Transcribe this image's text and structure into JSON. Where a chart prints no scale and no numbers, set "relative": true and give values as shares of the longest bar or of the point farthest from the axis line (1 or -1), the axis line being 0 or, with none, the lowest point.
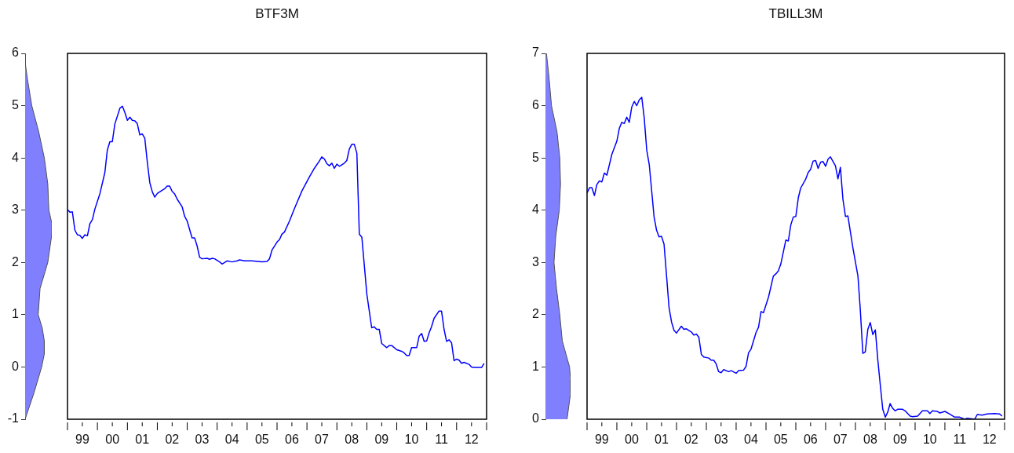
{
  "chart_data": [
    {
      "type": "area",
      "orientation": "horizontal",
      "relative": true,
      "color": "#8080ff",
      "tick_labels": "y",
      "ylim": [
        -1,
        6
      ],
      "yticks": [
        -1,
        0,
        1,
        2,
        3,
        4,
        5,
        6
      ],
      "x": [
        6,
        5.8,
        5.5,
        5,
        4.5,
        4,
        3.5,
        3,
        2.75,
        2.5,
        2,
        1.5,
        1,
        0.75,
        0.5,
        0.25,
        0,
        -0.5,
        -1
      ],
      "values": [
        0,
        0.01,
        0.09,
        0.25,
        0.51,
        0.72,
        0.85,
        0.89,
        1,
        0.99,
        0.85,
        0.56,
        0.49,
        0.64,
        0.72,
        0.72,
        0.62,
        0.33,
        0
      ]
    },
    {
      "type": "line",
      "title": "BTF3M",
      "color": "#0000ff",
      "marker": "none",
      "tick_labels": "x",
      "ylim": [
        -1,
        6
      ],
      "xlim": [
        "1999-01",
        "2013-01"
      ],
      "xticks": [
        {
          "value": "1999-01",
          "label": null
        },
        {
          "value": "1999-07",
          "label": "99"
        },
        {
          "value": "2000-01",
          "label": null
        },
        {
          "value": "2000-07",
          "label": "00"
        },
        {
          "value": "2001-01",
          "label": null
        },
        {
          "value": "2001-07",
          "label": "01"
        },
        {
          "value": "2002-01",
          "label": null
        },
        {
          "value": "2002-07",
          "label": "02"
        },
        {
          "value": "2003-01",
          "label": null
        },
        {
          "value": "2003-07",
          "label": "03"
        },
        {
          "value": "2004-01",
          "label": null
        },
        {
          "value": "2004-07",
          "label": "04"
        },
        {
          "value": "2005-01",
          "label": null
        },
        {
          "value": "2005-07",
          "label": "05"
        },
        {
          "value": "2006-01",
          "label": null
        },
        {
          "value": "2006-07",
          "label": "06"
        },
        {
          "value": "2007-01",
          "label": null
        },
        {
          "value": "2007-07",
          "label": "07"
        },
        {
          "value": "2008-01",
          "label": null
        },
        {
          "value": "2008-07",
          "label": "08"
        },
        {
          "value": "2009-01",
          "label": null
        },
        {
          "value": "2009-07",
          "label": "09"
        },
        {
          "value": "2010-01",
          "label": null
        },
        {
          "value": "2010-07",
          "label": "10"
        },
        {
          "value": "2011-01",
          "label": null
        },
        {
          "value": "2011-07",
          "label": "11"
        },
        {
          "value": "2012-01",
          "label": null
        },
        {
          "value": "2012-07",
          "label": "12"
        },
        {
          "value": "2013-01",
          "label": null
        }
      ],
      "x": [
        "1999-01",
        "1999-02",
        "1999-03",
        "1999-04",
        "1999-05",
        "1999-06",
        "1999-07",
        "1999-08",
        "1999-09",
        "1999-10",
        "1999-11",
        "1999-12",
        "2000-02",
        "2000-04",
        "2000-05",
        "2000-06",
        "2000-07",
        "2000-08",
        "2000-10",
        "2000-11",
        "2000-12",
        "2001-01",
        "2001-02",
        "2001-03",
        "2001-04",
        "2001-05",
        "2001-06",
        "2001-07",
        "2001-08",
        "2001-09",
        "2001-10",
        "2001-11",
        "2001-12",
        "2002-01",
        "2002-03",
        "2002-04",
        "2002-05",
        "2002-06",
        "2002-07",
        "2002-08",
        "2002-09",
        "2002-11",
        "2002-12",
        "2003-01",
        "2003-02",
        "2003-03",
        "2003-04",
        "2003-05",
        "2003-06",
        "2003-07",
        "2003-09",
        "2003-10",
        "2003-11",
        "2003-12",
        "2004-02",
        "2004-03",
        "2004-05",
        "2004-07",
        "2004-09",
        "2004-10",
        "2004-12",
        "2005-03",
        "2005-07",
        "2005-09",
        "2005-10",
        "2005-11",
        "2006-01",
        "2006-02",
        "2006-03",
        "2006-04",
        "2006-06",
        "2006-08",
        "2006-11",
        "2007-02",
        "2007-04",
        "2007-06",
        "2007-07",
        "2007-08",
        "2007-09",
        "2007-10",
        "2007-11",
        "2007-12",
        "2008-01",
        "2008-02",
        "2008-04",
        "2008-05",
        "2008-06",
        "2008-07",
        "2008-08",
        "2008-09",
        "2008-10",
        "2008-11",
        "2009-01",
        "2009-03",
        "2009-04",
        "2009-05",
        "2009-06",
        "2009-07",
        "2009-09",
        "2009-10",
        "2009-11",
        "2010-01",
        "2010-03",
        "2010-04",
        "2010-05",
        "2010-06",
        "2010-07",
        "2010-09",
        "2010-10",
        "2010-11",
        "2010-12",
        "2011-01",
        "2011-02",
        "2011-03",
        "2011-04",
        "2011-06",
        "2011-07",
        "2011-08",
        "2011-09",
        "2011-10",
        "2011-11",
        "2011-12",
        "2012-01",
        "2012-02",
        "2012-03",
        "2012-04",
        "2012-06",
        "2012-07",
        "2012-08",
        "2012-11",
        "2012-12"
      ],
      "values": [
        3.01,
        2.96,
        2.97,
        2.62,
        2.53,
        2.52,
        2.46,
        2.53,
        2.51,
        2.74,
        2.82,
        3.02,
        3.32,
        3.72,
        4.15,
        4.31,
        4.31,
        4.65,
        4.95,
        4.99,
        4.87,
        4.72,
        4.78,
        4.72,
        4.71,
        4.66,
        4.44,
        4.46,
        4.38,
        3.92,
        3.53,
        3.35,
        3.25,
        3.32,
        3.38,
        3.41,
        3.46,
        3.46,
        3.36,
        3.31,
        3.21,
        3.06,
        2.88,
        2.79,
        2.62,
        2.47,
        2.47,
        2.32,
        2.1,
        2.07,
        2.08,
        2.06,
        2.08,
        2.07,
        2.01,
        1.97,
        2.03,
        2.01,
        2.03,
        2.05,
        2.03,
        2.03,
        2.01,
        2.02,
        2.07,
        2.24,
        2.39,
        2.44,
        2.54,
        2.58,
        2.79,
        3.03,
        3.37,
        3.64,
        3.8,
        3.94,
        4.02,
        3.98,
        3.89,
        3.85,
        3.9,
        3.8,
        3.88,
        3.84,
        3.9,
        3.95,
        4.17,
        4.26,
        4.26,
        4.09,
        2.54,
        2.48,
        1.39,
        0.75,
        0.77,
        0.72,
        0.72,
        0.45,
        0.37,
        0.41,
        0.41,
        0.33,
        0.3,
        0.27,
        0.22,
        0.22,
        0.37,
        0.37,
        0.59,
        0.64,
        0.49,
        0.5,
        0.66,
        0.77,
        0.93,
        1.07,
        1.07,
        0.72,
        0.49,
        0.52,
        0.46,
        0.12,
        0.15,
        0.13,
        0.07,
        0.09,
        0.05,
        0,
        -0.01,
        -0.01,
        0.07
      ]
    },
    {
      "type": "area",
      "orientation": "horizontal",
      "relative": true,
      "color": "#8080ff",
      "tick_labels": "y",
      "ylim": [
        0,
        7
      ],
      "yticks": [
        0,
        1,
        2,
        3,
        4,
        5,
        6,
        7
      ],
      "x": [
        7,
        6.5,
        6,
        5.5,
        5,
        4.5,
        4,
        3.5,
        3,
        2.5,
        2,
        1.5,
        1,
        0.75,
        0.5,
        0.25,
        0
      ],
      "values": [
        0.04,
        0.15,
        0.24,
        0.46,
        0.57,
        0.6,
        0.55,
        0.41,
        0.34,
        0.44,
        0.57,
        0.67,
        0.96,
        1,
        1,
        0.93,
        0.86
      ]
    },
    {
      "type": "line",
      "title": "TBILL3M",
      "color": "#0000ff",
      "marker": "none",
      "tick_labels": "x",
      "ylim": [
        0,
        7
      ],
      "xlim": [
        "1999-01",
        "2013-01"
      ],
      "xticks": [
        {
          "value": "1999-01",
          "label": null
        },
        {
          "value": "1999-07",
          "label": "99"
        },
        {
          "value": "2000-01",
          "label": null
        },
        {
          "value": "2000-07",
          "label": "00"
        },
        {
          "value": "2001-01",
          "label": null
        },
        {
          "value": "2001-07",
          "label": "01"
        },
        {
          "value": "2002-01",
          "label": null
        },
        {
          "value": "2002-07",
          "label": "02"
        },
        {
          "value": "2003-01",
          "label": null
        },
        {
          "value": "2003-07",
          "label": "03"
        },
        {
          "value": "2004-01",
          "label": null
        },
        {
          "value": "2004-07",
          "label": "04"
        },
        {
          "value": "2005-01",
          "label": null
        },
        {
          "value": "2005-07",
          "label": "05"
        },
        {
          "value": "2006-01",
          "label": null
        },
        {
          "value": "2006-07",
          "label": "06"
        },
        {
          "value": "2007-01",
          "label": null
        },
        {
          "value": "2007-07",
          "label": "07"
        },
        {
          "value": "2008-01",
          "label": null
        },
        {
          "value": "2008-07",
          "label": "08"
        },
        {
          "value": "2009-01",
          "label": null
        },
        {
          "value": "2009-07",
          "label": "09"
        },
        {
          "value": "2010-01",
          "label": null
        },
        {
          "value": "2010-07",
          "label": "10"
        },
        {
          "value": "2011-01",
          "label": null
        },
        {
          "value": "2011-07",
          "label": "11"
        },
        {
          "value": "2012-01",
          "label": null
        },
        {
          "value": "2012-07",
          "label": "12"
        },
        {
          "value": "2013-01",
          "label": null
        }
      ],
      "x": [
        "1999-01",
        "1999-02",
        "1999-03",
        "1999-04",
        "1999-05",
        "1999-06",
        "1999-07",
        "1999-08",
        "1999-09",
        "1999-11",
        "2000-01",
        "2000-02",
        "2000-03",
        "2000-04",
        "2000-05",
        "2000-06",
        "2000-07",
        "2000-08",
        "2000-09",
        "2000-10",
        "2000-11",
        "2000-12",
        "2001-01",
        "2001-02",
        "2001-04",
        "2001-05",
        "2001-06",
        "2001-07",
        "2001-08",
        "2001-09",
        "2001-10",
        "2001-11",
        "2001-12",
        "2002-01",
        "2002-03",
        "2002-04",
        "2002-05",
        "2002-07",
        "2002-08",
        "2002-09",
        "2002-10",
        "2002-11",
        "2002-12",
        "2003-02",
        "2003-03",
        "2003-04",
        "2003-05",
        "2003-06",
        "2003-07",
        "2003-08",
        "2003-10",
        "2003-11",
        "2004-01",
        "2004-02",
        "2004-04",
        "2004-05",
        "2004-06",
        "2004-07",
        "2004-09",
        "2004-10",
        "2004-11",
        "2004-12",
        "2005-02",
        "2005-04",
        "2005-05",
        "2005-06",
        "2005-07",
        "2005-09",
        "2005-10",
        "2005-11",
        "2005-12",
        "2006-01",
        "2006-02",
        "2006-03",
        "2006-05",
        "2006-06",
        "2006-07",
        "2006-08",
        "2006-09",
        "2006-10",
        "2006-11",
        "2006-12",
        "2007-01",
        "2007-02",
        "2007-03",
        "2007-05",
        "2007-06",
        "2007-07",
        "2007-08",
        "2007-09",
        "2007-10",
        "2007-12",
        "2008-02",
        "2008-03",
        "2008-04",
        "2008-05",
        "2008-06",
        "2008-07",
        "2008-08",
        "2008-09",
        "2008-10",
        "2008-11",
        "2008-12",
        "2009-01",
        "2009-02",
        "2009-03",
        "2009-04",
        "2009-05",
        "2009-06",
        "2009-08",
        "2009-09",
        "2009-11",
        "2009-12",
        "2010-02",
        "2010-04",
        "2010-06",
        "2010-07",
        "2010-08",
        "2010-10",
        "2010-11",
        "2011-01",
        "2011-03",
        "2011-05",
        "2011-07",
        "2011-09",
        "2011-10",
        "2012-01",
        "2012-02",
        "2012-04",
        "2012-06",
        "2012-09",
        "2012-11",
        "2012-12"
      ],
      "values": [
        4.33,
        4.43,
        4.43,
        4.28,
        4.49,
        4.56,
        4.54,
        4.71,
        4.67,
        5.07,
        5.32,
        5.57,
        5.68,
        5.66,
        5.78,
        5.68,
        5.97,
        6.08,
        6,
        6.11,
        6.16,
        5.77,
        5.15,
        4.87,
        3.87,
        3.62,
        3.49,
        3.5,
        3.35,
        2.74,
        2.14,
        1.86,
        1.7,
        1.65,
        1.78,
        1.72,
        1.73,
        1.67,
        1.61,
        1.63,
        1.57,
        1.24,
        1.19,
        1.17,
        1.13,
        1.13,
        1.06,
        0.91,
        0.89,
        0.95,
        0.91,
        0.93,
        0.88,
        0.93,
        0.94,
        1.01,
        1.27,
        1.34,
        1.66,
        1.76,
        2.06,
        2.04,
        2.34,
        2.74,
        2.78,
        2.84,
        2.97,
        3.43,
        3.41,
        3.72,
        3.87,
        3.88,
        4.24,
        4.42,
        4.59,
        4.72,
        4.78,
        4.94,
        4.95,
        4.8,
        4.92,
        4.93,
        4.84,
        4.98,
        5.02,
        4.85,
        4.6,
        4.82,
        4.21,
        3.88,
        3.89,
        3.28,
        2.74,
        2.09,
        1.26,
        1.29,
        1.72,
        1.85,
        1.62,
        1.71,
        1.14,
        0.65,
        0.19,
        0.04,
        0.14,
        0.3,
        0.21,
        0.16,
        0.19,
        0.19,
        0.16,
        0.06,
        0.05,
        0.06,
        0.16,
        0.16,
        0.11,
        0.16,
        0.15,
        0.12,
        0.15,
        0.1,
        0.04,
        0.04,
        0,
        0.02,
        0,
        0.09,
        0.08,
        0.1,
        0.11,
        0.1,
        0.06
      ]
    }
  ]
}
